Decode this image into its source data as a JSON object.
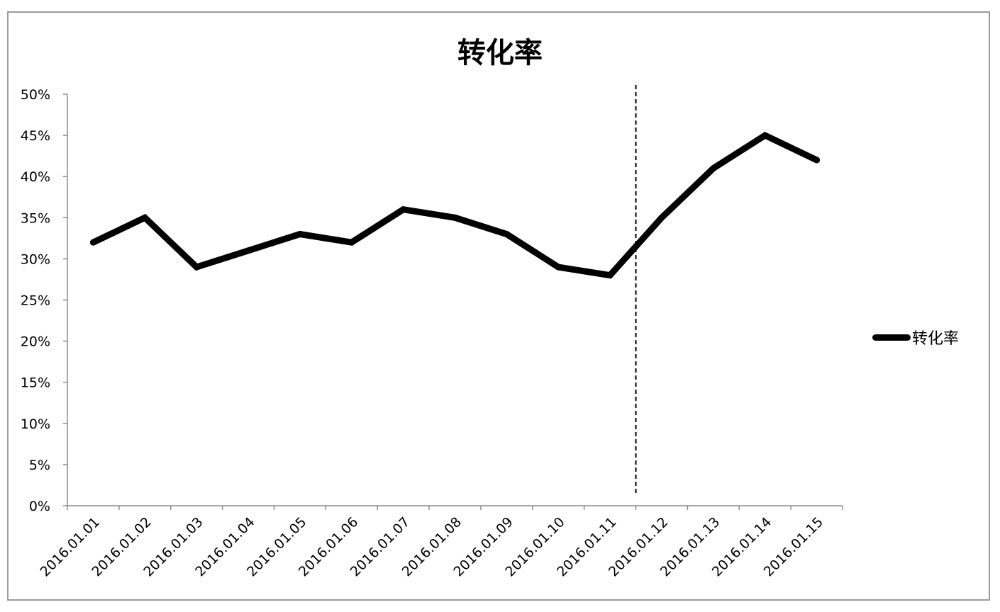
{
  "chart_data": {
    "type": "line",
    "title": "转化率",
    "categories": [
      "2016.01.01",
      "2016.01.02",
      "2016.01.03",
      "2016.01.04",
      "2016.01.05",
      "2016.01.06",
      "2016.01.07",
      "2016.01.08",
      "2016.01.09",
      "2016.01.10",
      "2016.01.11",
      "2016.01.12",
      "2016.01.13",
      "2016.01.14",
      "2016.01.15"
    ],
    "series": [
      {
        "name": "转化率",
        "values": [
          0.32,
          0.35,
          0.29,
          0.31,
          0.33,
          0.32,
          0.36,
          0.35,
          0.33,
          0.29,
          0.28,
          0.35,
          0.41,
          0.45,
          0.42
        ],
        "color": "#000000"
      }
    ],
    "ylim": [
      0,
      0.5
    ],
    "yticks": [
      0,
      0.05,
      0.1,
      0.15,
      0.2,
      0.25,
      0.3,
      0.35,
      0.4,
      0.45,
      0.5
    ],
    "ytick_labels": [
      "0%",
      "5%",
      "10%",
      "15%",
      "20%",
      "25%",
      "30%",
      "35%",
      "40%",
      "45%",
      "50%"
    ],
    "xlabel": "",
    "ylabel": "",
    "grid": false,
    "legend_position": "right",
    "reference_line": {
      "style": "dashed",
      "between": [
        "2016.01.11",
        "2016.01.12"
      ]
    }
  }
}
